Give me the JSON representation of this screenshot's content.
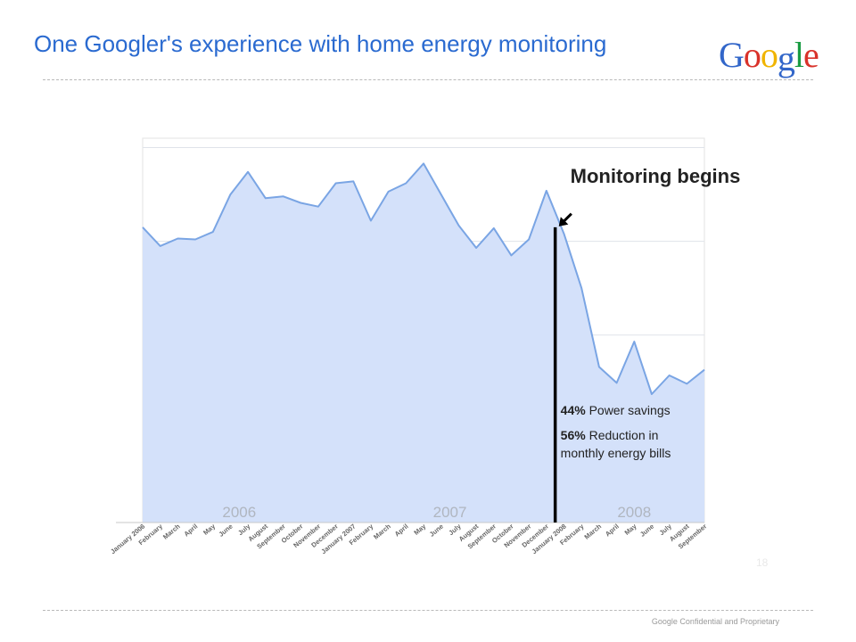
{
  "slide": {
    "title": "One Googler's experience with home energy monitoring",
    "footer": "Google Confidential and Proprietary",
    "logo_letters": [
      {
        "ch": "G",
        "color": "#3266c9"
      },
      {
        "ch": "o",
        "color": "#d9322a"
      },
      {
        "ch": "o",
        "color": "#f0b400"
      },
      {
        "ch": "g",
        "color": "#3266c9"
      },
      {
        "ch": "l",
        "color": "#1a9c43"
      },
      {
        "ch": "e",
        "color": "#d9322a"
      }
    ],
    "page_number": "18"
  },
  "chart_data": {
    "type": "area",
    "title": "",
    "xlabel": "",
    "ylabel": "",
    "ylim": [
      0,
      4.1
    ],
    "grid": true,
    "series": [
      {
        "values": [
          3.15,
          2.95,
          3.03,
          3.02,
          3.1,
          3.5,
          3.74,
          3.46,
          3.48,
          3.41,
          3.37,
          3.62,
          3.64,
          3.22,
          3.53,
          3.62,
          3.83,
          3.5,
          3.17,
          2.93,
          3.14,
          2.85,
          3.02,
          3.54,
          3.08,
          2.5,
          1.66,
          1.49,
          1.93,
          1.37,
          1.57,
          1.48,
          1.63
        ],
        "color": "#7aa5e4",
        "fill": "#d4e1fa"
      }
    ],
    "categories": [
      "January 2006",
      "February",
      "March",
      "April",
      "May",
      "June",
      "July",
      "August",
      "September",
      "October",
      "November",
      "December",
      "January 2007",
      "February",
      "March",
      "April",
      "May",
      "June",
      "July",
      "August",
      "September",
      "October",
      "November",
      "December",
      "January 2008",
      "February",
      "March",
      "April",
      "May",
      "June",
      "July",
      "August",
      "September"
    ],
    "year_labels": [
      {
        "label": "2006",
        "start_index": 0,
        "end_index": 11
      },
      {
        "label": "2007",
        "start_index": 12,
        "end_index": 23
      },
      {
        "label": "2008",
        "start_index": 24,
        "end_index": 32
      }
    ],
    "annotation": {
      "label": "Monitoring begins",
      "at_index": 23.5,
      "stats": [
        {
          "value": "44%",
          "text": " Power savings"
        },
        {
          "value": "56%",
          "text": " Reduction in"
        },
        {
          "value": "",
          "text": "monthly energy bills"
        }
      ]
    }
  }
}
